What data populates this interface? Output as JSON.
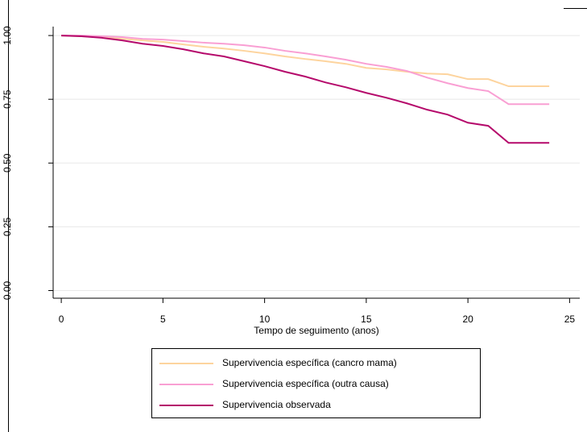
{
  "chart_data": {
    "type": "line",
    "x_label": "Tempo de seguimento (anos)",
    "x": [
      0,
      1,
      2,
      3,
      4,
      5,
      6,
      7,
      8,
      9,
      10,
      11,
      12,
      13,
      14,
      15,
      16,
      17,
      18,
      19,
      20,
      21,
      22,
      23,
      24
    ],
    "series": [
      {
        "name": "Supervivencia específica (cancro mama)",
        "color": "#fdd49e",
        "values": [
          1.0,
          0.997,
          0.994,
          0.987,
          0.981,
          0.975,
          0.965,
          0.956,
          0.949,
          0.94,
          0.93,
          0.918,
          0.908,
          0.899,
          0.889,
          0.873,
          0.867,
          0.858,
          0.851,
          0.848,
          0.829,
          0.829,
          0.801,
          0.801,
          0.801
        ]
      },
      {
        "name": "Supervivencia específica (outra causa)",
        "color": "#f99fd3",
        "values": [
          1.0,
          1.0,
          0.997,
          0.994,
          0.987,
          0.984,
          0.978,
          0.972,
          0.968,
          0.962,
          0.953,
          0.94,
          0.93,
          0.918,
          0.905,
          0.889,
          0.877,
          0.861,
          0.835,
          0.813,
          0.794,
          0.782,
          0.731,
          0.731,
          0.731
        ]
      },
      {
        "name": "Supervivencia observada",
        "color": "#b5096b",
        "values": [
          1.0,
          0.997,
          0.991,
          0.981,
          0.968,
          0.959,
          0.946,
          0.93,
          0.918,
          0.899,
          0.88,
          0.858,
          0.839,
          0.816,
          0.797,
          0.775,
          0.756,
          0.734,
          0.709,
          0.69,
          0.658,
          0.646,
          0.579,
          0.579,
          0.579
        ]
      }
    ],
    "xlim": [
      -0.4,
      25.5
    ],
    "xticks": [
      0,
      5,
      10,
      15,
      20,
      25
    ],
    "ylim": [
      -0.03,
      1.035
    ],
    "yticks": [
      {
        "value": 0,
        "label": "0.00"
      },
      {
        "value": 0.25,
        "label": "0.25"
      },
      {
        "value": 0.5,
        "label": "0.50"
      },
      {
        "value": 0.75,
        "label": "0.75"
      },
      {
        "value": 1,
        "label": "1.00"
      }
    ],
    "grid": true,
    "legend": "bottom"
  }
}
